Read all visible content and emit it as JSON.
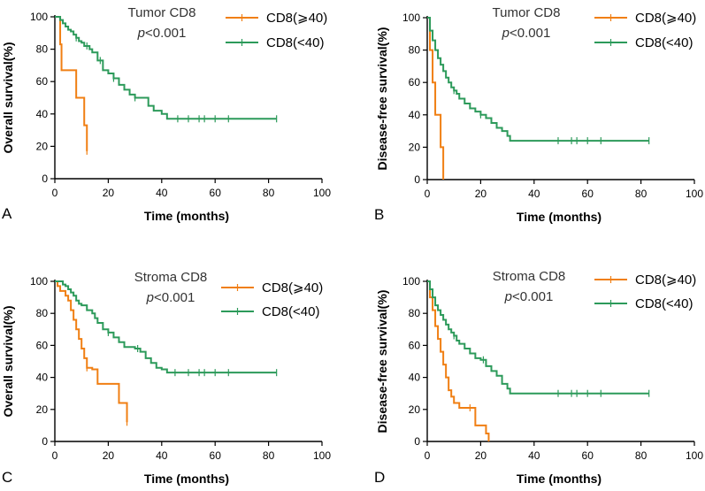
{
  "chart_data": [
    {
      "type": "line",
      "panel_label": "A",
      "title_line1": "Tumor CD8",
      "p_symbol": "p",
      "p_rest": "<0.001",
      "xlabel": "Time (months)",
      "ylabel": "Overall survival(%)",
      "xlim": [
        0,
        100
      ],
      "ylim": [
        0,
        100
      ],
      "xticks": [
        0,
        20,
        40,
        60,
        80,
        100
      ],
      "yticks": [
        0,
        20,
        40,
        60,
        80,
        100
      ],
      "series": [
        {
          "name": "CD8(⩾40)",
          "color": "#f07f13",
          "x": [
            0,
            1,
            2,
            2.5,
            7,
            8,
            10,
            11,
            12
          ],
          "y": [
            100,
            100,
            83,
            67,
            67,
            50,
            50,
            33,
            17
          ],
          "censored_x": [
            12
          ]
        },
        {
          "name": "CD8(<40)",
          "color": "#2c9a5a",
          "x": [
            0,
            2,
            3,
            4,
            5,
            6,
            7,
            8,
            9,
            10,
            11,
            13,
            14,
            16,
            18,
            20,
            22,
            24,
            26,
            28,
            30,
            33,
            35,
            37,
            40,
            42,
            83
          ],
          "y": [
            100,
            98,
            96,
            94,
            92,
            91,
            89,
            87,
            85,
            84,
            82,
            80,
            78,
            73,
            67,
            65,
            62,
            58,
            55,
            52,
            50,
            50,
            45,
            42,
            40,
            37,
            37
          ],
          "censored_x": [
            8,
            12,
            17,
            22,
            30,
            46,
            50,
            54,
            56,
            60,
            65,
            83
          ]
        }
      ]
    },
    {
      "type": "line",
      "panel_label": "B",
      "title_line1": "Tumor CD8",
      "p_symbol": "p",
      "p_rest": "<0.001",
      "xlabel": "Time (months)",
      "ylabel": "Disease-free survival(%)",
      "xlim": [
        0,
        100
      ],
      "ylim": [
        0,
        100
      ],
      "xticks": [
        0,
        20,
        40,
        60,
        80,
        100
      ],
      "yticks": [
        0,
        20,
        40,
        60,
        80,
        100
      ],
      "series": [
        {
          "name": "CD8(⩾40)",
          "color": "#f07f13",
          "x": [
            0,
            1,
            2,
            3,
            4,
            5,
            6
          ],
          "y": [
            100,
            80,
            60,
            40,
            40,
            20,
            0
          ],
          "censored_x": []
        },
        {
          "name": "CD8(<40)",
          "color": "#2c9a5a",
          "x": [
            0,
            1,
            2,
            3,
            4,
            5,
            6,
            7,
            8,
            9,
            10,
            11,
            12,
            14,
            16,
            18,
            20,
            22,
            24,
            26,
            28,
            30,
            31,
            83
          ],
          "y": [
            100,
            92,
            86,
            80,
            75,
            71,
            67,
            63,
            60,
            57,
            55,
            53,
            50,
            47,
            44,
            42,
            40,
            38,
            35,
            32,
            30,
            27,
            24,
            24
          ],
          "censored_x": [
            10,
            20,
            49,
            54,
            56,
            60,
            65,
            83
          ]
        }
      ]
    },
    {
      "type": "line",
      "panel_label": "C",
      "title_line1": "Stroma CD8",
      "p_symbol": "p",
      "p_rest": "<0.001",
      "xlabel": "Time (months)",
      "ylabel": "Overall survival(%)",
      "xlim": [
        0,
        100
      ],
      "ylim": [
        0,
        100
      ],
      "xticks": [
        0,
        20,
        40,
        60,
        80,
        100
      ],
      "yticks": [
        0,
        20,
        40,
        60,
        80,
        100
      ],
      "series": [
        {
          "name": "CD8(⩾40)",
          "color": "#f07f13",
          "x": [
            0,
            1,
            2,
            4,
            5,
            6,
            7,
            8,
            9,
            10,
            11,
            12,
            14,
            16,
            20,
            24,
            26,
            27
          ],
          "y": [
            100,
            97,
            94,
            91,
            88,
            82,
            76,
            70,
            64,
            58,
            52,
            46,
            45,
            36,
            36,
            24,
            24,
            12
          ],
          "censored_x": [
            12,
            27
          ]
        },
        {
          "name": "CD8(<40)",
          "color": "#2c9a5a",
          "x": [
            0,
            3,
            4,
            5,
            6,
            7,
            8,
            9,
            10,
            12,
            14,
            15,
            16,
            18,
            20,
            22,
            24,
            26,
            30,
            32,
            34,
            36,
            38,
            40,
            42,
            83
          ],
          "y": [
            100,
            98,
            97,
            95,
            93,
            91,
            88,
            86,
            85,
            82,
            80,
            77,
            74,
            70,
            68,
            65,
            62,
            59,
            58,
            56,
            52,
            49,
            46,
            45,
            43,
            43
          ],
          "censored_x": [
            20,
            31,
            45,
            50,
            54,
            56,
            60,
            65,
            83
          ]
        }
      ]
    },
    {
      "type": "line",
      "panel_label": "D",
      "title_line1": "Stroma CD8",
      "p_symbol": "p",
      "p_rest": "<0.001",
      "xlabel": "Time (months)",
      "ylabel": "Disease-free survival(%)",
      "xlim": [
        0,
        100
      ],
      "ylim": [
        0,
        100
      ],
      "xticks": [
        0,
        20,
        40,
        60,
        80,
        100
      ],
      "yticks": [
        0,
        20,
        40,
        60,
        80,
        100
      ],
      "series": [
        {
          "name": "CD8(⩾40)",
          "color": "#f07f13",
          "x": [
            0,
            1,
            2,
            3,
            4,
            5,
            6,
            7,
            8,
            9,
            10,
            12,
            16,
            18,
            20,
            22,
            23
          ],
          "y": [
            100,
            90,
            82,
            72,
            64,
            56,
            48,
            40,
            32,
            28,
            24,
            21,
            21,
            10,
            10,
            5,
            0
          ],
          "censored_x": [
            16
          ]
        },
        {
          "name": "CD8(<40)",
          "color": "#2c9a5a",
          "x": [
            0,
            1,
            2,
            3,
            4,
            5,
            6,
            7,
            8,
            9,
            10,
            11,
            12,
            14,
            16,
            18,
            20,
            22,
            24,
            26,
            28,
            30,
            31,
            83
          ],
          "y": [
            100,
            95,
            90,
            85,
            82,
            79,
            76,
            73,
            70,
            68,
            66,
            63,
            61,
            58,
            55,
            52,
            51,
            47,
            44,
            41,
            36,
            33,
            30,
            30
          ],
          "censored_x": [
            10,
            21,
            49,
            54,
            56,
            60,
            65,
            83
          ]
        }
      ]
    }
  ]
}
